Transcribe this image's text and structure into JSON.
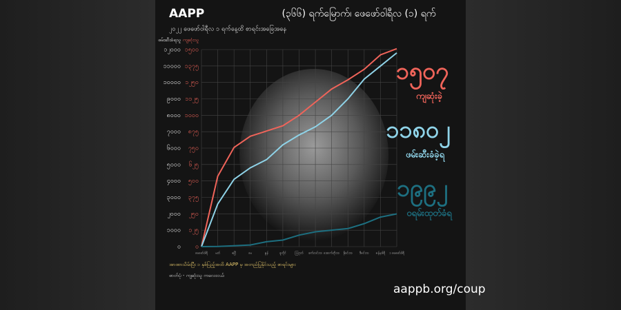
{
  "chart_data": {
    "type": "line",
    "brand": "AAPP",
    "title": "(၃၆၆) ရက်မြောက်၊ ဖေဖော်ဝါရီလ (၁) ရက်",
    "subtitle": "၂၀၂၂ ဖေဖော်ဝါရီလ ၁ ရက်နေ့ထိ စာရင်းအခြေအနေ",
    "y_label": "ဖမ်းဆီးခံရသူ",
    "y2_label": "ကျဆုံးသူ",
    "categories": [
      "ဖေဖော်ဝါရီ",
      "မတ်",
      "ဧပြီ",
      "မေ",
      "ဇွန်",
      "ဇူလိုင်",
      "ဩဂုတ်",
      "စက်တင်ဘာ",
      "အောက်တိုဘာ",
      "နိုဝင်ဘာ",
      "ဒီဇင်ဘာ",
      "ဇန်နဝါရီ",
      "၁ ဖေဖော်ဝါရီ"
    ],
    "series": [
      {
        "name": "ကျဆုံးခဲ့",
        "color": "#f0645a",
        "axis": "y2",
        "values": [
          0,
          536,
          755,
          840,
          880,
          920,
          1000,
          1100,
          1200,
          1270,
          1350,
          1460,
          1507
        ],
        "value_labels": [
          null,
          null,
          null,
          null,
          null,
          null,
          null,
          null,
          null,
          null,
          null,
          null,
          "၁၅၀၇"
        ]
      },
      {
        "name": "ဖမ်းဆီးခံခဲ့ရ",
        "color": "#8fd3e8",
        "values": [
          0,
          2600,
          4100,
          4800,
          5300,
          6200,
          6800,
          7300,
          8000,
          9000,
          10200,
          11000,
          11802
        ],
        "value_labels": [
          null,
          null,
          null,
          null,
          null,
          null,
          null,
          null,
          null,
          null,
          null,
          null,
          "၁၁၈၀၂"
        ]
      },
      {
        "name": "ဝရမ်းထုတ်ခံရ",
        "color": "#1d6f80",
        "values": [
          0,
          10,
          50,
          100,
          300,
          400,
          700,
          900,
          1000,
          1100,
          1400,
          1800,
          1992
        ],
        "value_labels": [
          null,
          null,
          null,
          null,
          null,
          null,
          null,
          null,
          null,
          null,
          null,
          null,
          "၁၉၉၂"
        ]
      }
    ],
    "ylim": [
      0,
      12000
    ],
    "yticks": [
      {
        "value": 0,
        "label": "၀"
      },
      {
        "value": 1000,
        "label": "၁၀၀၀"
      },
      {
        "value": 2000,
        "label": "၂၀၀၀"
      },
      {
        "value": 3000,
        "label": "၃၀၀၀"
      },
      {
        "value": 4000,
        "label": "၄၀၀၀"
      },
      {
        "value": 5000,
        "label": "၅၀၀၀"
      },
      {
        "value": 6000,
        "label": "၆၀၀၀"
      },
      {
        "value": 7000,
        "label": "၇၀၀၀"
      },
      {
        "value": 8000,
        "label": "၈၀၀၀"
      },
      {
        "value": 9000,
        "label": "၉၀၀၀"
      },
      {
        "value": 10000,
        "label": "၁၀၀၀၀"
      },
      {
        "value": 11000,
        "label": "၁၁၀၀၀"
      },
      {
        "value": 12000,
        "label": "၁၂၀၀၀"
      }
    ],
    "y2lim": [
      0,
      1500
    ],
    "y2ticks": [
      {
        "value": 0,
        "label": "၀"
      },
      {
        "value": 125,
        "label": "၁၂၅"
      },
      {
        "value": 250,
        "label": "၂၅၀"
      },
      {
        "value": 375,
        "label": "၃၇၅"
      },
      {
        "value": 500,
        "label": "၅၀၀"
      },
      {
        "value": 625,
        "label": "၆၂၅"
      },
      {
        "value": 750,
        "label": "၇၅၀"
      },
      {
        "value": 875,
        "label": "၈၇၅"
      },
      {
        "value": 1000,
        "label": "၁၀၀၀"
      },
      {
        "value": 1125,
        "label": "၁၁၂၅"
      },
      {
        "value": 1250,
        "label": "၁၂၅၀"
      },
      {
        "value": 1375,
        "label": "၁၃၇၅"
      },
      {
        "value": 1500,
        "label": "၁၅၀၀"
      }
    ],
    "grid": true,
    "footnote": [
      "အာဏာသိမ်းပြီး ၁ နှစ်ပြည့်အထိ AAPP မှ အတည်ပြုနိုင်သည့် စာရင်းများ",
      "ဓာတ်ပုံ - ကျဆုံးသူ ကလေးငယ်"
    ],
    "url": "aappb.org/coup"
  }
}
